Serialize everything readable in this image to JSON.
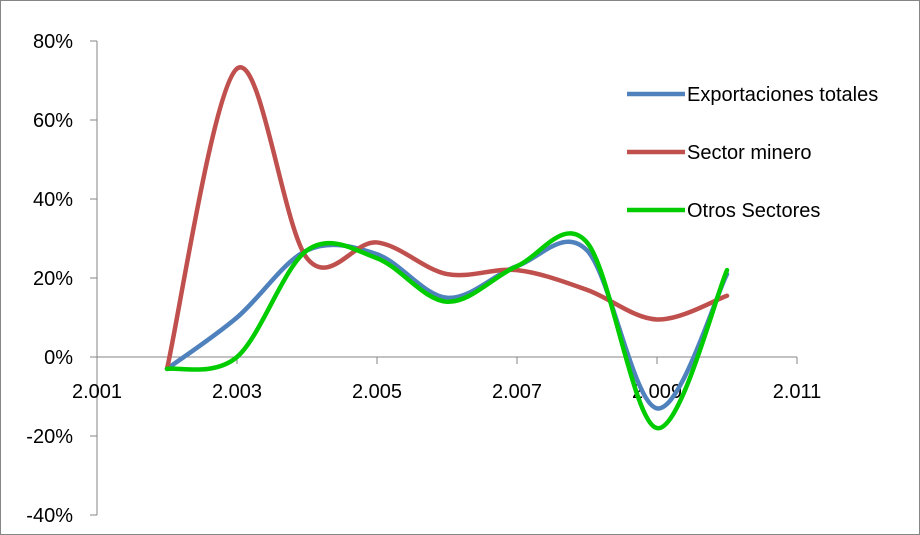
{
  "chart_data": {
    "type": "line",
    "title": "",
    "xlabel": "",
    "ylabel": "",
    "xlim": [
      2.001,
      2.011
    ],
    "ylim": [
      -0.4,
      0.8
    ],
    "x_ticks": [
      2.001,
      2.003,
      2.005,
      2.007,
      2.009,
      2.011
    ],
    "x_tick_labels": [
      "2.001",
      "2.003",
      "2.005",
      "2.007",
      "2.009",
      "2.011"
    ],
    "y_ticks": [
      0.8,
      0.6,
      0.4,
      0.2,
      0.0,
      -0.2,
      -0.4
    ],
    "y_tick_labels": [
      "80%",
      "60%",
      "40%",
      "20%",
      "0%",
      "-20%",
      "-40%"
    ],
    "grid": false,
    "smooth": true,
    "legend_position": "right",
    "series": [
      {
        "name": "Exportaciones totales",
        "color": "#4F81BD",
        "x": [
          2.002,
          2.003,
          2.004,
          2.005,
          2.006,
          2.007,
          2.008,
          2.009,
          2.01
        ],
        "y": [
          -0.03,
          0.1,
          0.27,
          0.26,
          0.15,
          0.23,
          0.27,
          -0.13,
          0.21
        ]
      },
      {
        "name": "Sector minero",
        "color": "#C0504D",
        "x": [
          2.002,
          2.003,
          2.004,
          2.005,
          2.006,
          2.007,
          2.008,
          2.009,
          2.01
        ],
        "y": [
          -0.03,
          0.73,
          0.25,
          0.29,
          0.21,
          0.22,
          0.17,
          0.095,
          0.155
        ]
      },
      {
        "name": "Otros Sectores",
        "color": "#00CC00",
        "x": [
          2.002,
          2.003,
          2.004,
          2.005,
          2.006,
          2.007,
          2.008,
          2.009,
          2.01
        ],
        "y": [
          -0.03,
          0.0,
          0.27,
          0.25,
          0.14,
          0.23,
          0.29,
          -0.18,
          0.22
        ]
      }
    ]
  }
}
